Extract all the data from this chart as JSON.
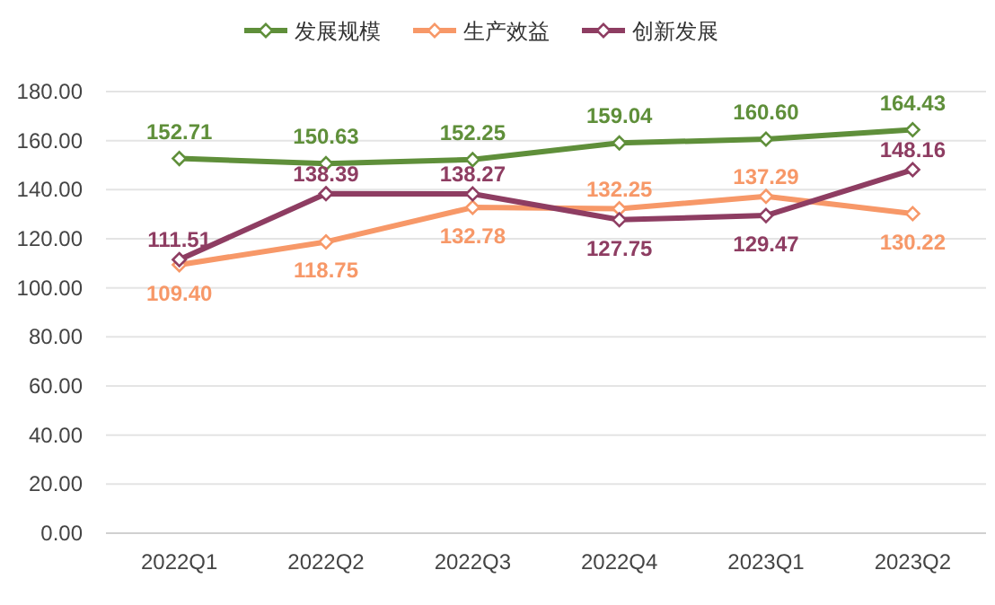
{
  "chart_data": {
    "type": "line",
    "categories": [
      "2022Q1",
      "2022Q2",
      "2022Q3",
      "2022Q4",
      "2023Q1",
      "2023Q2"
    ],
    "series": [
      {
        "name": "发展规模",
        "color": "#5f8f3a",
        "values": [
          152.71,
          150.63,
          152.25,
          159.04,
          160.6,
          164.43
        ],
        "value_labels": [
          "152.71",
          "150.63",
          "152.25",
          "159.04",
          "160.60",
          "164.43"
        ]
      },
      {
        "name": "生产效益",
        "color": "#f79868",
        "values": [
          109.4,
          118.75,
          132.78,
          132.25,
          137.29,
          130.22
        ],
        "value_labels": [
          "109.40",
          "118.75",
          "132.78",
          "132.25",
          "137.29",
          "130.22"
        ]
      },
      {
        "name": "创新发展",
        "color": "#8e3d62",
        "values": [
          111.51,
          138.39,
          138.27,
          127.75,
          129.47,
          148.16
        ],
        "value_labels": [
          "111.51",
          "138.39",
          "138.27",
          "127.75",
          "129.47",
          "148.16"
        ]
      }
    ],
    "ylim": [
      0,
      180
    ],
    "yticks": [
      {
        "value": 0,
        "label": "0.00"
      },
      {
        "value": 20,
        "label": "20.00"
      },
      {
        "value": 40,
        "label": "40.00"
      },
      {
        "value": 60,
        "label": "60.00"
      },
      {
        "value": 80,
        "label": "80.00"
      },
      {
        "value": 100,
        "label": "100.00"
      },
      {
        "value": 120,
        "label": "120.00"
      },
      {
        "value": 140,
        "label": "140.00"
      },
      {
        "value": 160,
        "label": "160.00"
      },
      {
        "value": 180,
        "label": "180.00"
      }
    ],
    "grid": "y",
    "legend": "top",
    "marker": "diamond",
    "line_style": "solid"
  }
}
